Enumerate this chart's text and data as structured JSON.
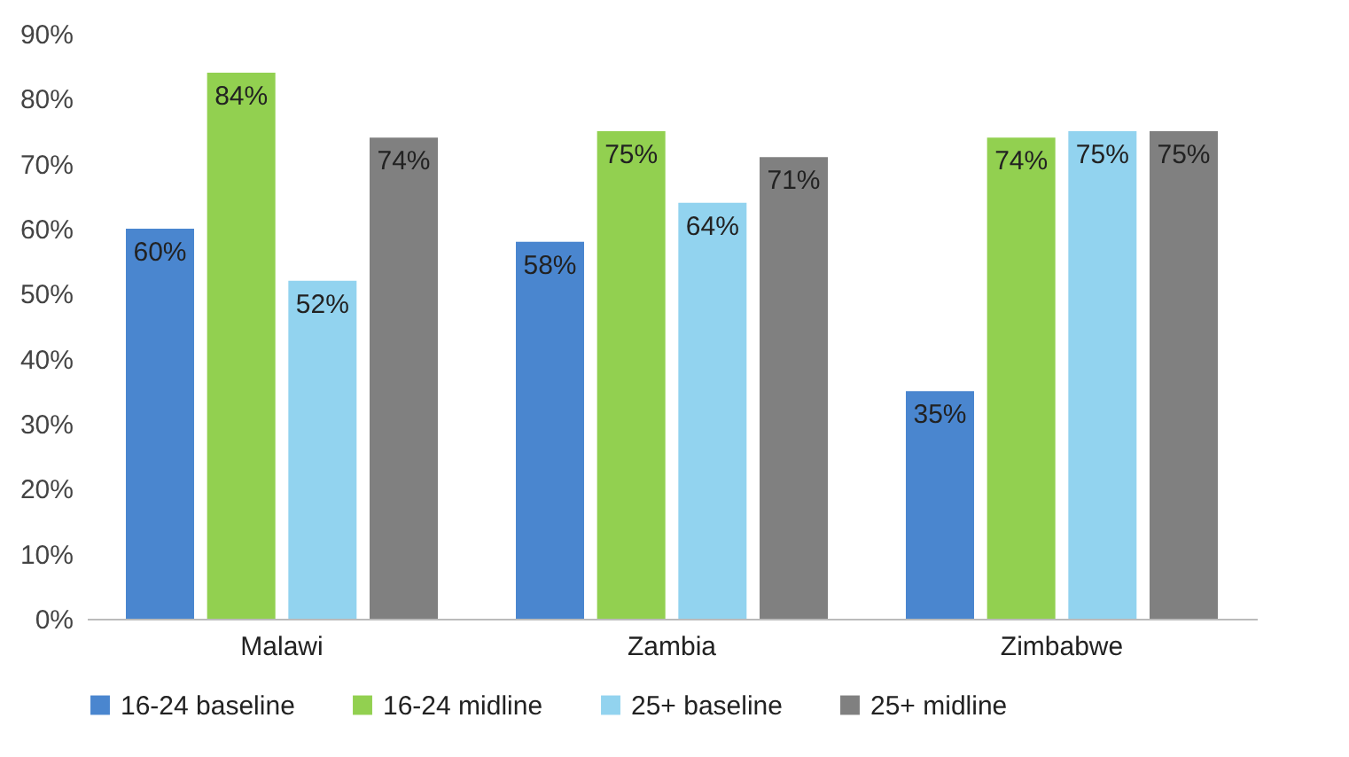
{
  "chart_data": {
    "type": "bar",
    "categories": [
      "Malawi",
      "Zambia",
      "Zimbabwe"
    ],
    "series": [
      {
        "name": "16-24 baseline",
        "color": "#4a86cf",
        "values": [
          60,
          58,
          35
        ],
        "value_labels": [
          "60%",
          "58%",
          "35%"
        ]
      },
      {
        "name": "16-24 midline",
        "color": "#92d050",
        "values": [
          84,
          75,
          74
        ],
        "value_labels": [
          "84%",
          "75%",
          "74%"
        ]
      },
      {
        "name": "25+ baseline",
        "color": "#92d3ef",
        "values": [
          52,
          64,
          75
        ],
        "value_labels": [
          "52%",
          "64%",
          "75%"
        ]
      },
      {
        "name": "25+ midline",
        "color": "#808080",
        "values": [
          74,
          71,
          75
        ],
        "value_labels": [
          "74%",
          "71%",
          "75%"
        ]
      }
    ],
    "ylim": [
      0,
      90
    ],
    "yticks": [
      {
        "value": 0,
        "label": "0%"
      },
      {
        "value": 10,
        "label": "10%"
      },
      {
        "value": 20,
        "label": "20%"
      },
      {
        "value": 30,
        "label": "30%"
      },
      {
        "value": 40,
        "label": "40%"
      },
      {
        "value": 50,
        "label": "50%"
      },
      {
        "value": 60,
        "label": "60%"
      },
      {
        "value": 70,
        "label": "70%"
      },
      {
        "value": 80,
        "label": "80%"
      },
      {
        "value": 90,
        "label": "90%"
      }
    ],
    "legend": "bottom"
  }
}
